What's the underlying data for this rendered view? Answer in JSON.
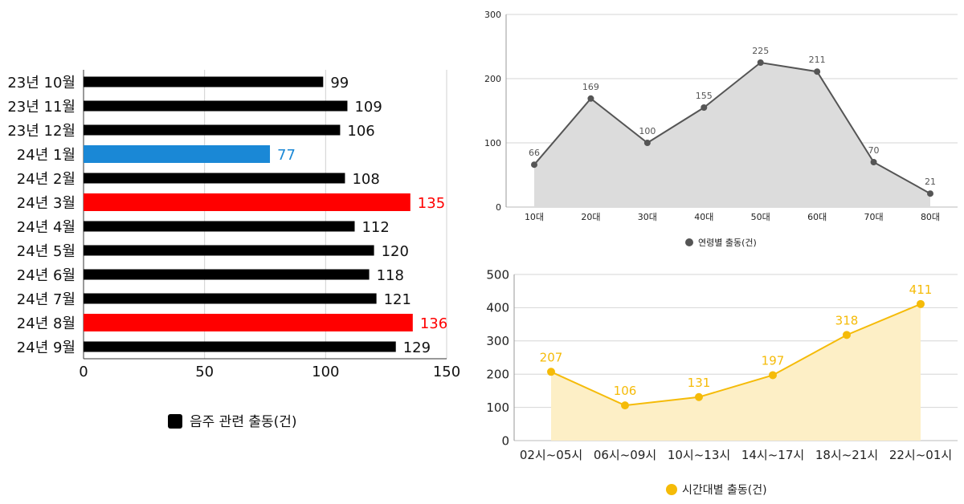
{
  "colors": {
    "bar_default": "#000000",
    "bar_low": "#1a88d6",
    "bar_high": "#ff0000",
    "age_line": "#555555",
    "age_fill": "#dcdcdc",
    "time_line": "#f5bb08",
    "time_fill": "#fdefc6"
  },
  "chart_data": [
    {
      "type": "bar",
      "orientation": "horizontal",
      "categories": [
        "23년 10월",
        "23년 11월",
        "23년 12월",
        "24년 1월",
        "24년 2월",
        "24년 3월",
        "24년 4월",
        "24년 5월",
        "24년 6월",
        "24년 7월",
        "24년 8월",
        "24년 9월"
      ],
      "series": [
        {
          "name": "음주 관련 출동(건)",
          "values": [
            99,
            109,
            106,
            77,
            108,
            135,
            112,
            120,
            118,
            121,
            136,
            129
          ]
        }
      ],
      "highlight": {
        "low": [
          3
        ],
        "high": [
          5,
          10
        ]
      },
      "xlim": [
        0,
        150
      ],
      "xticks": [
        0,
        50,
        100,
        150
      ],
      "grid": true,
      "legend": "bottom"
    },
    {
      "type": "area",
      "categories": [
        "10대",
        "20대",
        "30대",
        "40대",
        "50대",
        "60대",
        "70대",
        "80대"
      ],
      "series": [
        {
          "name": "연령별 출동(건)",
          "values": [
            66,
            169,
            100,
            155,
            225,
            211,
            70,
            21
          ]
        }
      ],
      "ylim": [
        0,
        300
      ],
      "yticks": [
        0,
        100,
        200,
        300
      ],
      "grid": true,
      "legend": "bottom"
    },
    {
      "type": "area",
      "categories": [
        "02시~05시",
        "06시~09시",
        "10시~13시",
        "14시~17시",
        "18시~21시",
        "22시~01시"
      ],
      "series": [
        {
          "name": "시간대별 출동(건)",
          "values": [
            207,
            106,
            131,
            197,
            318,
            411
          ]
        }
      ],
      "ylim": [
        0,
        500
      ],
      "yticks": [
        0,
        100,
        200,
        300,
        400,
        500
      ],
      "grid": true,
      "legend": "bottom"
    }
  ]
}
